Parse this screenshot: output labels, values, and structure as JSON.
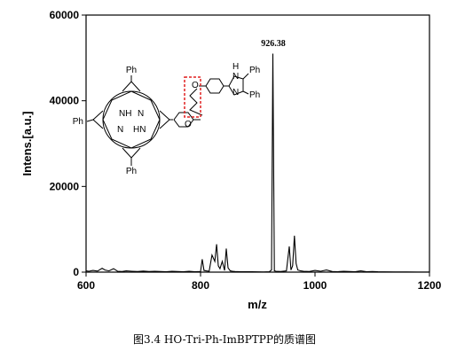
{
  "chart_data": {
    "type": "line",
    "xlabel": "m/z",
    "ylabel": "Intens.[a.u.]",
    "xlim": [
      600,
      1200
    ],
    "ylim": [
      0,
      60000
    ],
    "x_ticks": [
      "600",
      "800",
      "1000",
      "1200"
    ],
    "y_ticks": [
      "0",
      "20000",
      "40000",
      "60000"
    ],
    "series": [
      {
        "x": [
          600,
          605,
          612,
          620,
          628,
          633,
          640,
          648,
          655,
          663,
          670,
          680,
          690,
          700,
          710,
          720,
          730,
          740,
          750,
          760,
          770,
          780,
          790,
          800,
          803,
          806,
          810,
          815,
          820,
          825,
          828,
          831,
          834,
          838,
          842,
          845,
          848,
          852,
          856,
          860,
          870,
          880,
          890,
          900,
          910,
          920,
          924,
          926.38,
          929,
          932,
          940,
          950,
          955,
          958,
          961,
          964,
          967,
          970,
          975,
          980,
          990,
          1000,
          1010,
          1020,
          1030,
          1040,
          1050,
          1060,
          1070,
          1080,
          1090,
          1100,
          1110,
          1120,
          1140,
          1160,
          1180,
          1200
        ],
        "y": [
          300,
          200,
          400,
          250,
          900,
          500,
          300,
          800,
          200,
          150,
          300,
          200,
          150,
          250,
          150,
          200,
          150,
          100,
          200,
          150,
          100,
          200,
          100,
          150,
          3000,
          400,
          300,
          200,
          4000,
          2500,
          6500,
          1500,
          800,
          2500,
          400,
          5500,
          1000,
          300,
          200,
          150,
          100,
          100,
          80,
          60,
          50,
          80,
          500,
          51000,
          300,
          200,
          150,
          300,
          6000,
          500,
          1500,
          8500,
          2000,
          500,
          300,
          200,
          150,
          400,
          200,
          500,
          150,
          100,
          200,
          150,
          100,
          300,
          100,
          150,
          80,
          60,
          50,
          40,
          30,
          20
        ]
      }
    ],
    "annotations": [
      "926.38"
    ]
  },
  "molecule": {
    "substituent_labels": [
      "Ph",
      "Ph",
      "Ph",
      "Ph",
      "Ph"
    ],
    "atom_labels": [
      "NH",
      "N",
      "N",
      "HN",
      "O",
      "O",
      "H",
      "N",
      "N"
    ]
  },
  "caption": "图3.4    HO-Tri-Ph-ImBPTPP的质谱图"
}
